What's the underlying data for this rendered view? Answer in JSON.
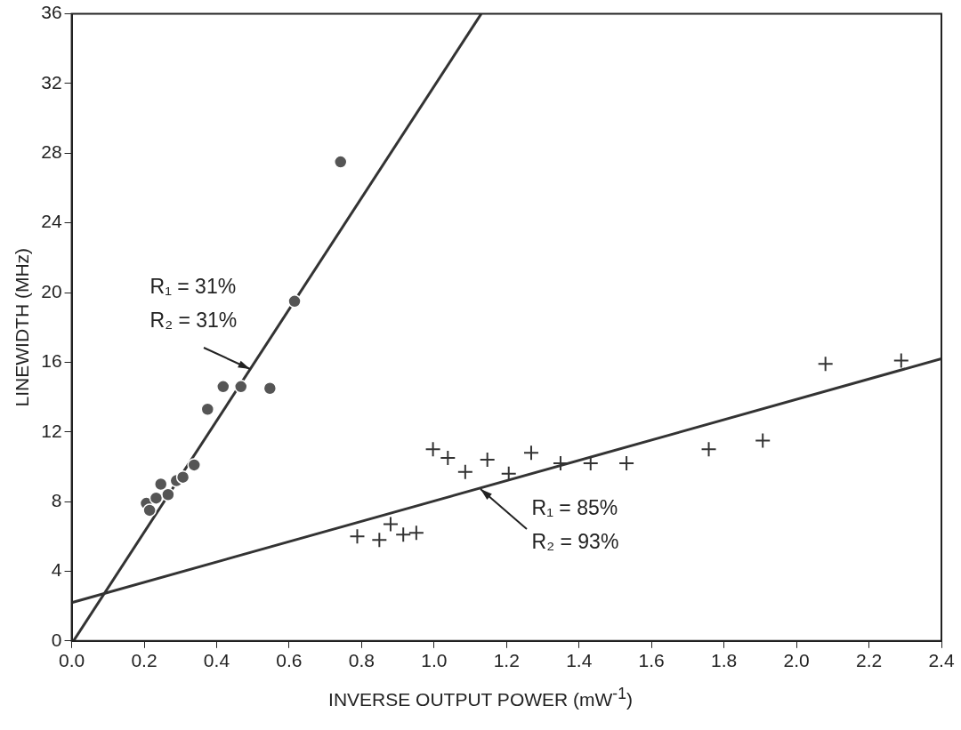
{
  "chart_data": {
    "type": "scatter",
    "xlabel": "INVERSE OUTPUT POWER (mW$^{-1}$)",
    "ylabel": "LINEWIDTH (MHz)",
    "xlim": [
      0,
      2.4
    ],
    "xticks": [
      {
        "value": 0,
        "label": "0.0"
      },
      0.2,
      0.4,
      0.6,
      0.8,
      {
        "value": 1,
        "label": "1.0"
      },
      1.2,
      1.4,
      1.6,
      1.8,
      {
        "value": 2,
        "label": "2.0"
      },
      2.2,
      2.4
    ],
    "ylim": [
      0,
      36
    ],
    "yticks": [
      0,
      4,
      8,
      12,
      16,
      20,
      24,
      28,
      32,
      36
    ],
    "grid": false,
    "legend": false,
    "series": [
      {
        "type": "scatter",
        "marker": "circle",
        "color": "#555555",
        "x": [
          0.206,
          0.215,
          0.233,
          0.246,
          0.266,
          0.289,
          0.307,
          0.338,
          0.375,
          0.418,
          0.467,
          0.547,
          0.615,
          0.742
        ],
        "values": [
          7.9,
          7.5,
          8.2,
          9.0,
          8.4,
          9.2,
          9.4,
          10.1,
          13.3,
          14.6,
          14.6,
          14.5,
          19.5,
          27.5
        ]
      },
      {
        "type": "scatter",
        "marker": "cross",
        "color": "#333333",
        "x": [
          0.788,
          0.849,
          0.88,
          0.915,
          0.951,
          0.997,
          1.038,
          1.086,
          1.147,
          1.206,
          1.268,
          1.349,
          1.432,
          1.531,
          1.758,
          1.907,
          2.08,
          2.289
        ],
        "values": [
          6.0,
          5.8,
          6.7,
          6.1,
          6.2,
          11.0,
          10.5,
          9.7,
          10.4,
          9.6,
          10.8,
          10.2,
          10.2,
          10.2,
          11.0,
          11.5,
          15.9,
          16.1
        ]
      },
      {
        "type": "line",
        "marker": "none",
        "color": "#333333",
        "x": [
          0.005,
          1.13
        ],
        "values": [
          0,
          36
        ]
      },
      {
        "type": "line",
        "marker": "none",
        "color": "#333333",
        "x": [
          0,
          2.4
        ],
        "values": [
          2.2,
          16.2
        ]
      }
    ],
    "annotations": [
      {
        "text": "R₁ = 31%\nR₂ = 31%",
        "x": 0.491,
        "y": 15.6
      },
      {
        "text": "R₁ = 85%\nR₂ = 93%",
        "x": 1.127,
        "y": 8.7
      }
    ]
  }
}
